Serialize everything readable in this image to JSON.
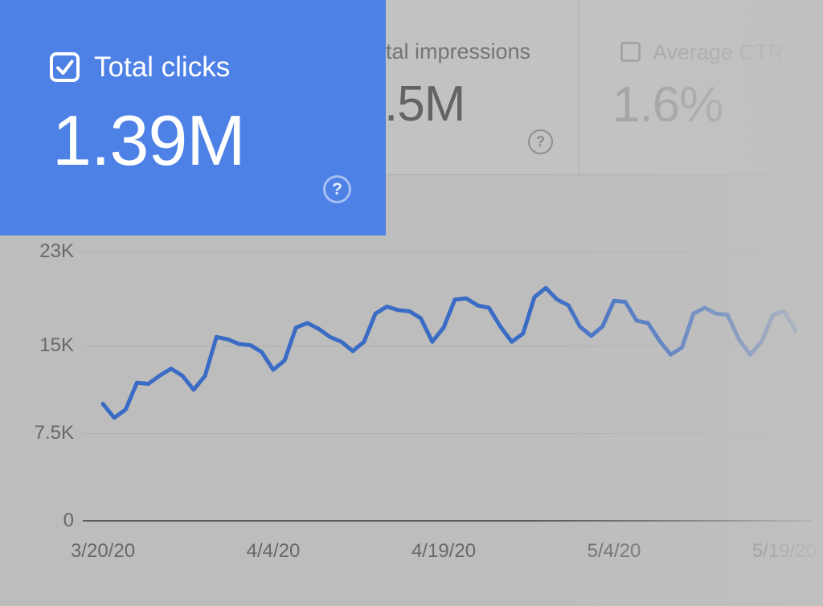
{
  "colors": {
    "highlight_blue": "#4e81e6",
    "line_blue": "#3a6bc5",
    "dim_background": "#bdbdbd"
  },
  "cards": {
    "clicks": {
      "label": "Total clicks",
      "value": "1.39M",
      "checked": true,
      "help_icon": "?"
    },
    "impressions": {
      "label_visible": "tal impressions",
      "value_visible": ".5M",
      "help_icon": "?"
    },
    "ctr": {
      "label": "Average CTR",
      "value": "1.6%",
      "checked": false
    }
  },
  "chart_data": {
    "type": "line",
    "title": "",
    "xlabel": "",
    "ylabel": "",
    "units": "clicks per day",
    "ylim": [
      0,
      23000
    ],
    "grid": "horizontal",
    "legend": "none",
    "fade_right": true,
    "y_tick_labels": [
      "0",
      "7.5K",
      "15K",
      "23K"
    ],
    "y_tick_values": [
      0,
      7500,
      15000,
      23000
    ],
    "x_tick_labels": [
      "3/20/20",
      "4/4/20",
      "4/19/20",
      "5/4/20",
      "5/19/20"
    ],
    "x_tick_indices": [
      0,
      15,
      30,
      45,
      60
    ],
    "series": [
      {
        "name": "Total clicks",
        "start_label": "3/20/20",
        "values": [
          10000,
          8800,
          9500,
          11800,
          11700,
          12400,
          13000,
          12400,
          11200,
          12400,
          15700,
          15500,
          15100,
          15000,
          14400,
          12900,
          13700,
          16500,
          16900,
          16400,
          15700,
          15300,
          14500,
          15300,
          17700,
          18300,
          18000,
          17900,
          17300,
          15300,
          16500,
          18900,
          19000,
          18400,
          18200,
          16600,
          15300,
          16000,
          19100,
          19900,
          18900,
          18400,
          16600,
          15800,
          16600,
          18800,
          18700,
          17100,
          16900,
          15400,
          14200,
          14800,
          17700,
          18200,
          17700,
          17600,
          15500,
          14200,
          15300,
          17600,
          17900,
          16200
        ]
      }
    ]
  }
}
